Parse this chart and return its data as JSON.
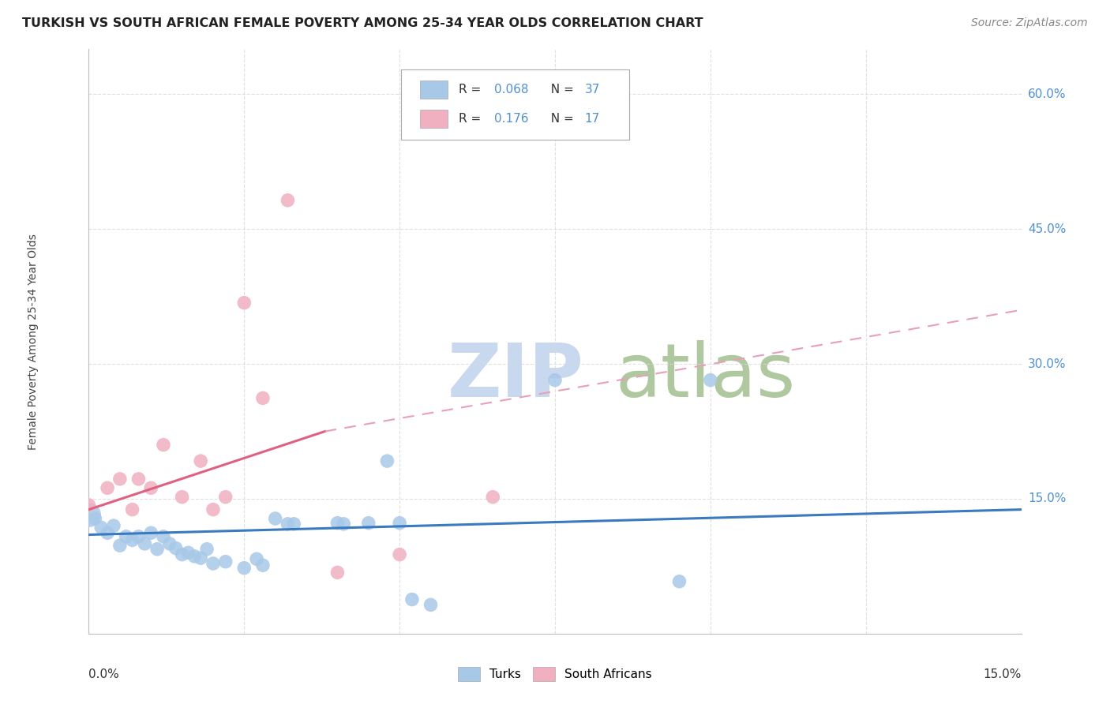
{
  "title": "TURKISH VS SOUTH AFRICAN FEMALE POVERTY AMONG 25-34 YEAR OLDS CORRELATION CHART",
  "source": "Source: ZipAtlas.com",
  "ylabel": "Female Poverty Among 25-34 Year Olds",
  "xlim": [
    0.0,
    0.15
  ],
  "ylim": [
    0.0,
    0.65
  ],
  "turks_R": "0.068",
  "turks_N": "37",
  "sa_R": "0.176",
  "sa_N": "17",
  "turks_color": "#a8c8e8",
  "sa_color": "#f0b0c0",
  "turks_line_color": "#3a7abf",
  "sa_line_color": "#e06080",
  "sa_dash_color": "#e8a0b8",
  "right_label_color": "#5090d0",
  "grid_color": "#d8d8d8",
  "watermark_zip_color": "#c8d8ee",
  "watermark_atlas_color": "#b0c8a0",
  "turks_points": [
    [
      0.001,
      0.128
    ],
    [
      0.002,
      0.118
    ],
    [
      0.003,
      0.112
    ],
    [
      0.004,
      0.12
    ],
    [
      0.005,
      0.098
    ],
    [
      0.006,
      0.108
    ],
    [
      0.007,
      0.104
    ],
    [
      0.008,
      0.108
    ],
    [
      0.009,
      0.1
    ],
    [
      0.01,
      0.112
    ],
    [
      0.011,
      0.094
    ],
    [
      0.012,
      0.108
    ],
    [
      0.013,
      0.1
    ],
    [
      0.014,
      0.095
    ],
    [
      0.015,
      0.088
    ],
    [
      0.016,
      0.09
    ],
    [
      0.017,
      0.086
    ],
    [
      0.018,
      0.084
    ],
    [
      0.019,
      0.094
    ],
    [
      0.02,
      0.078
    ],
    [
      0.022,
      0.08
    ],
    [
      0.025,
      0.073
    ],
    [
      0.027,
      0.083
    ],
    [
      0.028,
      0.076
    ],
    [
      0.03,
      0.128
    ],
    [
      0.032,
      0.122
    ],
    [
      0.033,
      0.122
    ],
    [
      0.04,
      0.123
    ],
    [
      0.041,
      0.122
    ],
    [
      0.045,
      0.123
    ],
    [
      0.048,
      0.192
    ],
    [
      0.05,
      0.123
    ],
    [
      0.052,
      0.038
    ],
    [
      0.055,
      0.032
    ],
    [
      0.075,
      0.282
    ],
    [
      0.095,
      0.058
    ],
    [
      0.1,
      0.282
    ]
  ],
  "turks_sizes": [
    160,
    160,
    160,
    160,
    160,
    160,
    160,
    160,
    160,
    160,
    160,
    160,
    160,
    160,
    160,
    160,
    160,
    160,
    160,
    160,
    160,
    160,
    160,
    160,
    160,
    160,
    160,
    160,
    160,
    160,
    160,
    160,
    160,
    160,
    160,
    160,
    160
  ],
  "turks_big_point": [
    0.0,
    0.132
  ],
  "turks_big_size": 500,
  "sa_points": [
    [
      0.0,
      0.143
    ],
    [
      0.003,
      0.162
    ],
    [
      0.005,
      0.172
    ],
    [
      0.007,
      0.138
    ],
    [
      0.008,
      0.172
    ],
    [
      0.01,
      0.162
    ],
    [
      0.012,
      0.21
    ],
    [
      0.015,
      0.152
    ],
    [
      0.018,
      0.192
    ],
    [
      0.02,
      0.138
    ],
    [
      0.022,
      0.152
    ],
    [
      0.025,
      0.368
    ],
    [
      0.028,
      0.262
    ],
    [
      0.032,
      0.482
    ],
    [
      0.04,
      0.068
    ],
    [
      0.05,
      0.088
    ],
    [
      0.065,
      0.152
    ]
  ],
  "sa_sizes": [
    160,
    160,
    160,
    160,
    160,
    160,
    160,
    160,
    160,
    160,
    160,
    160,
    160,
    160,
    160,
    160,
    160
  ],
  "turks_line": {
    "x0": 0.0,
    "x1": 0.15,
    "y0": 0.11,
    "y1": 0.138
  },
  "sa_solid_line": {
    "x0": 0.0,
    "x1": 0.038,
    "y0": 0.138,
    "y1": 0.225
  },
  "sa_dash_line": {
    "x0": 0.038,
    "x1": 0.15,
    "y0": 0.225,
    "y1": 0.36
  }
}
